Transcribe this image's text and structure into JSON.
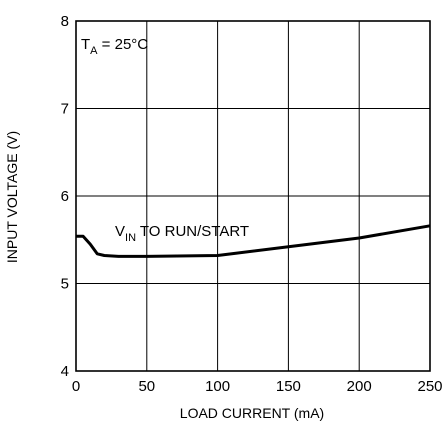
{
  "chart_data": {
    "type": "line",
    "xlabel": "LOAD CURRENT (mA)",
    "ylabel": "INPUT VOLTAGE (V)",
    "xlim": [
      0,
      250
    ],
    "ylim": [
      4,
      8
    ],
    "x_ticks": [
      0,
      50,
      100,
      150,
      200,
      250
    ],
    "y_ticks": [
      4,
      5,
      6,
      7,
      8
    ],
    "grid": true,
    "annotations": [
      {
        "main": "T",
        "sub": "A",
        "rest": " = 25°C"
      },
      {
        "main": "V",
        "sub": "IN",
        "rest": " TO RUN/START"
      }
    ],
    "series": [
      {
        "x": [
          0,
          5,
          10,
          15,
          20,
          30,
          50,
          100,
          150,
          200,
          250
        ],
        "y": [
          5.54,
          5.54,
          5.45,
          5.34,
          5.32,
          5.31,
          5.31,
          5.32,
          5.42,
          5.52,
          5.66
        ]
      }
    ]
  }
}
